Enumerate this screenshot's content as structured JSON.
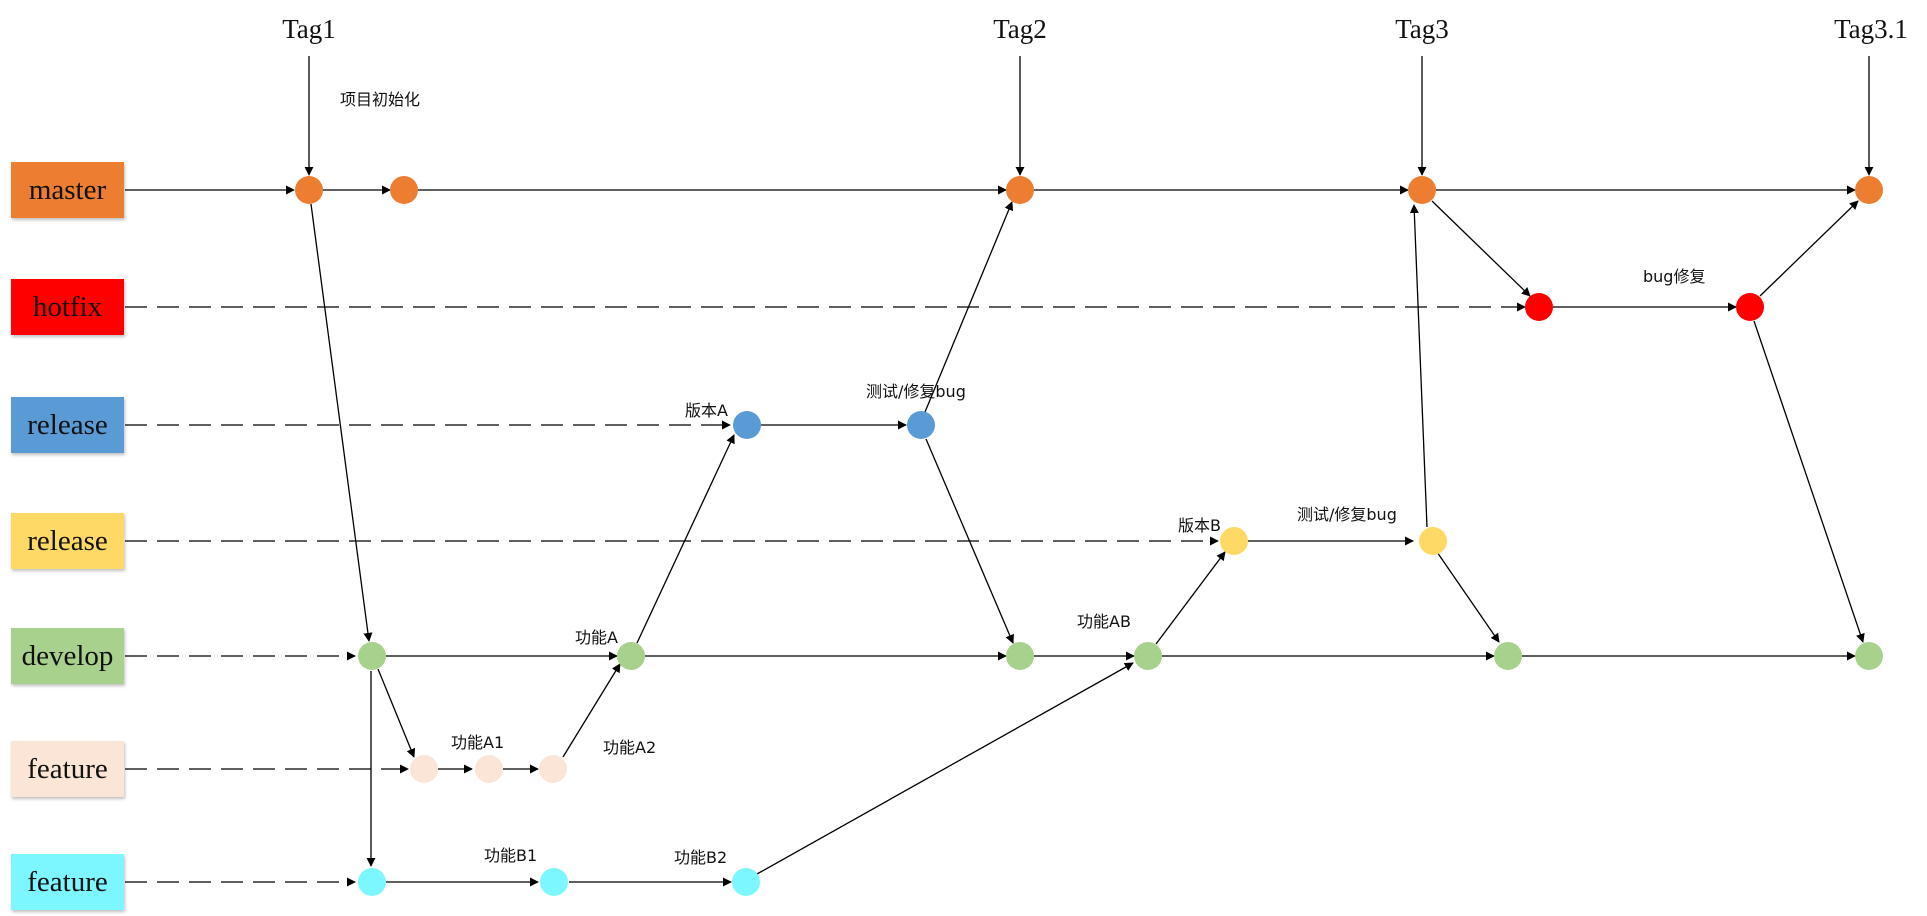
{
  "branches": [
    {
      "label": "master",
      "color": "#ED7D31"
    },
    {
      "label": "hotfix",
      "color": "#FF0000"
    },
    {
      "label": "release",
      "color": "#5B9BD5"
    },
    {
      "label": "release",
      "color": "#FFD966"
    },
    {
      "label": "develop",
      "color": "#A9D18E"
    },
    {
      "label": "feature",
      "color": "#FBE5D6"
    },
    {
      "label": "feature",
      "color": "#7DF7FF"
    }
  ],
  "tags": [
    "Tag1",
    "Tag2",
    "Tag3",
    "Tag3.1"
  ],
  "annotations": {
    "init": "项目初始化",
    "bugfix": "bug修复",
    "versionA": "版本A",
    "testA": "测试/修复bug",
    "versionB": "版本B",
    "testB": "测试/修复bug",
    "featA": "功能A",
    "featAB": "功能AB",
    "featA1": "功能A1",
    "featA2": "功能A2",
    "featB1": "功能B1",
    "featB2": "功能B2"
  }
}
